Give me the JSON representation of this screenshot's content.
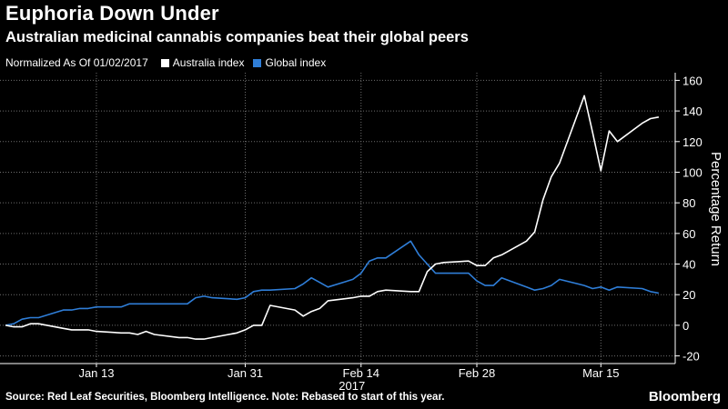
{
  "header": {
    "title": "Euphoria Down Under",
    "subtitle": "Australian medicinal cannabis companies beat their global peers"
  },
  "legend": {
    "note": "Normalized As Of 01/02/2017"
  },
  "footer": {
    "source": "Source: Red Leaf Securities, Bloomberg Intelligence. Note: Rebased to start of this year.",
    "brand": "Bloomberg"
  },
  "colors": {
    "background": "#000000",
    "australia": "#ffffff",
    "global": "#2f7ed8",
    "grid": "#6e6e6e",
    "axis": "#ffffff"
  },
  "chart_data": {
    "type": "line",
    "title": "Euphoria Down Under",
    "subtitle": "Australian medicinal cannabis companies beat their global peers",
    "xlabel": "",
    "ylabel": "Percentage Return",
    "year_label": "2017",
    "x_ticks": [
      "Jan 13",
      "Jan 31",
      "Feb 14",
      "Feb 28",
      "Mar 15"
    ],
    "x_tick_dates": [
      "2017-01-13",
      "2017-01-31",
      "2017-02-14",
      "2017-02-28",
      "2017-03-15"
    ],
    "x_range": [
      "2017-01-02",
      "2017-03-23"
    ],
    "ylim": [
      -25,
      165
    ],
    "y_ticks": [
      -20,
      0,
      20,
      40,
      60,
      80,
      100,
      120,
      140,
      160
    ],
    "grid": true,
    "legend_position": "top-left",
    "series": [
      {
        "name": "Australia index",
        "color": "#ffffff",
        "points": [
          [
            "2017-01-02",
            0
          ],
          [
            "2017-01-03",
            -1
          ],
          [
            "2017-01-04",
            -1
          ],
          [
            "2017-01-05",
            1
          ],
          [
            "2017-01-06",
            1
          ],
          [
            "2017-01-09",
            -2
          ],
          [
            "2017-01-10",
            -3
          ],
          [
            "2017-01-11",
            -3
          ],
          [
            "2017-01-12",
            -3
          ],
          [
            "2017-01-13",
            -4
          ],
          [
            "2017-01-16",
            -5
          ],
          [
            "2017-01-17",
            -5
          ],
          [
            "2017-01-18",
            -6
          ],
          [
            "2017-01-19",
            -4
          ],
          [
            "2017-01-20",
            -6
          ],
          [
            "2017-01-23",
            -8
          ],
          [
            "2017-01-24",
            -8
          ],
          [
            "2017-01-25",
            -9
          ],
          [
            "2017-01-26",
            -9
          ],
          [
            "2017-01-27",
            -8
          ],
          [
            "2017-01-30",
            -5
          ],
          [
            "2017-01-31",
            -3
          ],
          [
            "2017-02-01",
            0
          ],
          [
            "2017-02-02",
            0
          ],
          [
            "2017-02-03",
            13
          ],
          [
            "2017-02-06",
            10
          ],
          [
            "2017-02-07",
            6
          ],
          [
            "2017-02-08",
            9
          ],
          [
            "2017-02-09",
            11
          ],
          [
            "2017-02-10",
            16
          ],
          [
            "2017-02-13",
            18
          ],
          [
            "2017-02-14",
            19
          ],
          [
            "2017-02-15",
            19
          ],
          [
            "2017-02-16",
            22
          ],
          [
            "2017-02-17",
            23
          ],
          [
            "2017-02-20",
            22
          ],
          [
            "2017-02-21",
            22
          ],
          [
            "2017-02-22",
            35
          ],
          [
            "2017-02-23",
            40
          ],
          [
            "2017-02-24",
            41
          ],
          [
            "2017-02-27",
            42
          ],
          [
            "2017-02-28",
            39
          ],
          [
            "2017-03-01",
            39
          ],
          [
            "2017-03-02",
            44
          ],
          [
            "2017-03-03",
            46
          ],
          [
            "2017-03-06",
            55
          ],
          [
            "2017-03-07",
            61
          ],
          [
            "2017-03-08",
            82
          ],
          [
            "2017-03-09",
            97
          ],
          [
            "2017-03-10",
            106
          ],
          [
            "2017-03-13",
            150
          ],
          [
            "2017-03-14",
            126
          ],
          [
            "2017-03-15",
            101
          ],
          [
            "2017-03-16",
            127
          ],
          [
            "2017-03-17",
            120
          ],
          [
            "2017-03-20",
            132
          ],
          [
            "2017-03-21",
            135
          ],
          [
            "2017-03-22",
            136
          ]
        ]
      },
      {
        "name": "Global index",
        "color": "#2f7ed8",
        "points": [
          [
            "2017-01-02",
            0
          ],
          [
            "2017-01-03",
            1
          ],
          [
            "2017-01-04",
            4
          ],
          [
            "2017-01-05",
            5
          ],
          [
            "2017-01-06",
            5
          ],
          [
            "2017-01-09",
            10
          ],
          [
            "2017-01-10",
            10
          ],
          [
            "2017-01-11",
            11
          ],
          [
            "2017-01-12",
            11
          ],
          [
            "2017-01-13",
            12
          ],
          [
            "2017-01-16",
            12
          ],
          [
            "2017-01-17",
            14
          ],
          [
            "2017-01-18",
            14
          ],
          [
            "2017-01-19",
            14
          ],
          [
            "2017-01-20",
            14
          ],
          [
            "2017-01-23",
            14
          ],
          [
            "2017-01-24",
            14
          ],
          [
            "2017-01-25",
            18
          ],
          [
            "2017-01-26",
            19
          ],
          [
            "2017-01-27",
            18
          ],
          [
            "2017-01-30",
            17
          ],
          [
            "2017-01-31",
            18
          ],
          [
            "2017-02-01",
            22
          ],
          [
            "2017-02-02",
            23
          ],
          [
            "2017-02-03",
            23
          ],
          [
            "2017-02-06",
            24
          ],
          [
            "2017-02-07",
            27
          ],
          [
            "2017-02-08",
            31
          ],
          [
            "2017-02-09",
            28
          ],
          [
            "2017-02-10",
            25
          ],
          [
            "2017-02-13",
            30
          ],
          [
            "2017-02-14",
            34
          ],
          [
            "2017-02-15",
            42
          ],
          [
            "2017-02-16",
            44
          ],
          [
            "2017-02-17",
            44
          ],
          [
            "2017-02-20",
            55
          ],
          [
            "2017-02-21",
            46
          ],
          [
            "2017-02-22",
            40
          ],
          [
            "2017-02-23",
            34
          ],
          [
            "2017-02-24",
            34
          ],
          [
            "2017-02-27",
            34
          ],
          [
            "2017-02-28",
            29
          ],
          [
            "2017-03-01",
            26
          ],
          [
            "2017-03-02",
            26
          ],
          [
            "2017-03-03",
            31
          ],
          [
            "2017-03-06",
            25
          ],
          [
            "2017-03-07",
            23
          ],
          [
            "2017-03-08",
            24
          ],
          [
            "2017-03-09",
            26
          ],
          [
            "2017-03-10",
            30
          ],
          [
            "2017-03-13",
            26
          ],
          [
            "2017-03-14",
            24
          ],
          [
            "2017-03-15",
            25
          ],
          [
            "2017-03-16",
            23
          ],
          [
            "2017-03-17",
            25
          ],
          [
            "2017-03-20",
            24
          ],
          [
            "2017-03-21",
            22
          ],
          [
            "2017-03-22",
            21
          ]
        ]
      }
    ]
  }
}
